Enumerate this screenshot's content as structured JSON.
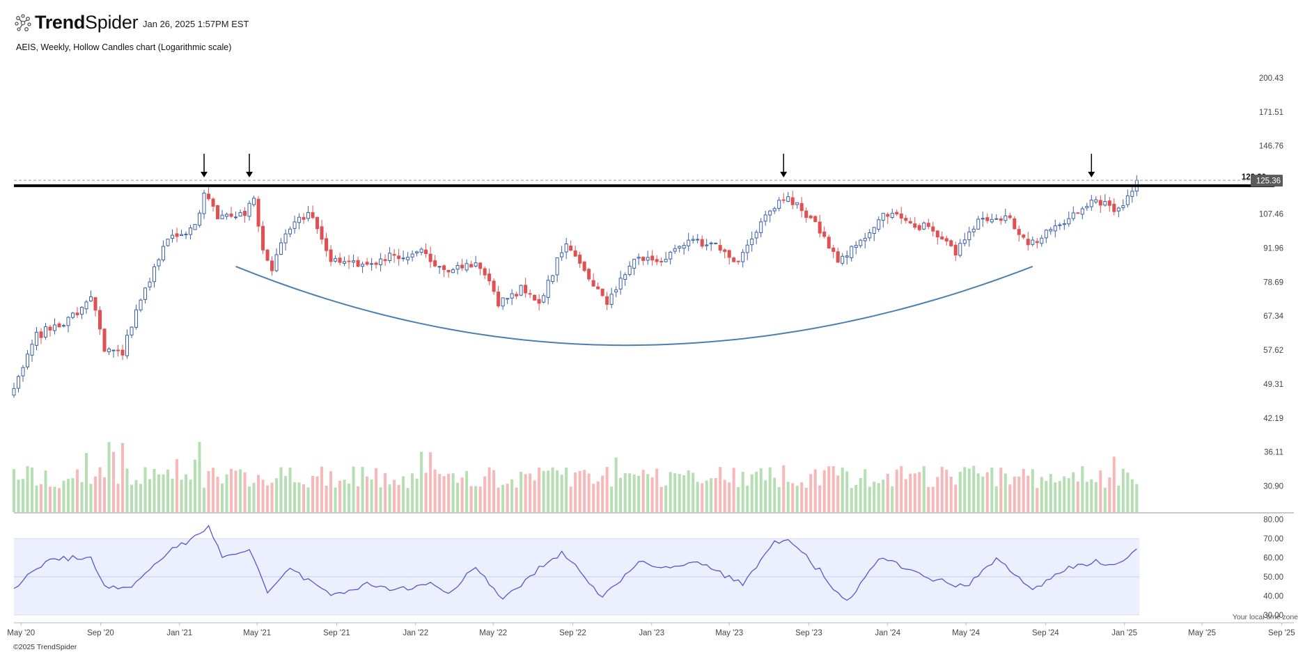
{
  "header": {
    "brand_bold": "Trend",
    "brand_light": "Spider",
    "timestamp": "Jan 26, 2025 1:57PM EST",
    "chart_title": "AEIS, Weekly, Hollow Candles chart (Logarithmic scale)"
  },
  "footer": {
    "copyright": "©2025 TrendSpider",
    "timezone_note": "Your local time zone"
  },
  "colors": {
    "up": "#3a5fa8",
    "down": "#e15050",
    "volume_up": "#b5dfb2",
    "volume_down": "#f6b8b8",
    "rsi_line": "#4a4ad0",
    "rsi_band": "#eceffd",
    "cup_curve": "#4b7fb0",
    "resistance": "#000000",
    "price_tag_bg": "#5a5a5a"
  },
  "chart_data": {
    "type": "candlestick",
    "symbol": "AEIS",
    "interval": "Weekly",
    "scale": "log",
    "price_axis_ticks": [
      200.43,
      171.51,
      146.76,
      125.36,
      107.46,
      91.96,
      78.69,
      67.34,
      57.62,
      49.31,
      42.19,
      36.11,
      30.9
    ],
    "rsi_axis_ticks": [
      80.0,
      70.0,
      60.0,
      50.0,
      40.0,
      30.0
    ],
    "x_ticks": [
      "May '20",
      "Sep '20",
      "Jan '21",
      "May '21",
      "Sep '21",
      "Jan '22",
      "May '22",
      "Sep '22",
      "Jan '23",
      "May '23",
      "Sep '23",
      "Jan '24",
      "May '24",
      "Sep '24",
      "Jan '25",
      "May '25",
      "Sep '25"
    ],
    "x_range": [
      "2020-04-20",
      "2025-09-20"
    ],
    "price_range": [
      27.6,
      217
    ],
    "resistance_level": 122.3,
    "dashed_level": 125.36,
    "last_price": 125.36,
    "rsi_band": [
      30,
      70
    ],
    "rsi_range": [
      27,
      82
    ],
    "arrow_dates": [
      "2021-02-08",
      "2021-04-19",
      "2023-07-24",
      "2024-11-11"
    ],
    "cup_curve": {
      "start": [
        "2021-03-29",
        84.5
      ],
      "bottom": [
        "2022-11-21",
        58.9
      ],
      "end": [
        "2024-08-12",
        84.5
      ]
    },
    "price_anchors": [
      [
        "2020-04-20",
        48
      ],
      [
        "2020-05-25",
        62
      ],
      [
        "2020-07-06",
        65
      ],
      [
        "2020-08-17",
        73
      ],
      [
        "2020-09-07",
        58
      ],
      [
        "2020-10-05",
        57
      ],
      [
        "2020-11-09",
        76
      ],
      [
        "2020-12-14",
        96
      ],
      [
        "2021-01-25",
        100
      ],
      [
        "2021-02-08",
        118
      ],
      [
        "2021-03-01",
        106
      ],
      [
        "2021-04-12",
        106
      ],
      [
        "2021-04-26",
        115
      ],
      [
        "2021-05-10",
        91
      ],
      [
        "2021-05-24",
        83
      ],
      [
        "2021-06-14",
        100
      ],
      [
        "2021-07-19",
        108
      ],
      [
        "2021-08-23",
        87
      ],
      [
        "2021-10-04",
        85
      ],
      [
        "2021-11-22",
        88
      ],
      [
        "2022-01-10",
        91
      ],
      [
        "2022-02-14",
        82
      ],
      [
        "2022-04-04",
        87
      ],
      [
        "2022-05-09",
        72
      ],
      [
        "2022-06-13",
        76
      ],
      [
        "2022-07-11",
        71
      ],
      [
        "2022-08-22",
        94
      ],
      [
        "2022-09-26",
        80
      ],
      [
        "2022-10-24",
        71
      ],
      [
        "2022-12-05",
        88
      ],
      [
        "2023-01-16",
        87
      ],
      [
        "2023-02-27",
        96
      ],
      [
        "2023-04-10",
        92
      ],
      [
        "2023-05-15",
        86
      ],
      [
        "2023-06-19",
        103
      ],
      [
        "2023-07-24",
        117
      ],
      [
        "2023-08-28",
        108
      ],
      [
        "2023-10-16",
        86
      ],
      [
        "2023-11-27",
        96
      ],
      [
        "2023-12-25",
        108
      ],
      [
        "2024-02-05",
        103
      ],
      [
        "2024-03-11",
        99
      ],
      [
        "2024-04-15",
        91
      ],
      [
        "2024-05-20",
        104
      ],
      [
        "2024-07-01",
        107
      ],
      [
        "2024-08-05",
        93
      ],
      [
        "2024-09-16",
        102
      ],
      [
        "2024-11-11",
        113
      ],
      [
        "2024-12-23",
        110
      ],
      [
        "2025-01-20",
        123
      ]
    ],
    "rsi_anchors": [
      [
        "2020-04-20",
        44
      ],
      [
        "2020-06-15",
        60
      ],
      [
        "2020-08-17",
        60
      ],
      [
        "2020-09-07",
        44
      ],
      [
        "2020-10-19",
        45
      ],
      [
        "2020-12-14",
        63
      ],
      [
        "2021-01-25",
        71
      ],
      [
        "2021-02-15",
        76
      ],
      [
        "2021-03-08",
        60
      ],
      [
        "2021-04-19",
        64
      ],
      [
        "2021-05-17",
        42
      ],
      [
        "2021-06-21",
        55
      ],
      [
        "2021-08-23",
        40
      ],
      [
        "2021-10-18",
        46
      ],
      [
        "2021-12-06",
        43
      ],
      [
        "2022-01-24",
        47
      ],
      [
        "2022-02-21",
        41
      ],
      [
        "2022-04-04",
        55
      ],
      [
        "2022-05-16",
        38
      ],
      [
        "2022-06-27",
        50
      ],
      [
        "2022-08-15",
        63
      ],
      [
        "2022-10-17",
        39
      ],
      [
        "2022-12-12",
        58
      ],
      [
        "2023-01-23",
        54
      ],
      [
        "2023-03-13",
        58
      ],
      [
        "2023-05-22",
        46
      ],
      [
        "2023-07-10",
        68
      ],
      [
        "2023-07-31",
        70
      ],
      [
        "2023-09-04",
        58
      ],
      [
        "2023-10-30",
        37
      ],
      [
        "2023-12-18",
        60
      ],
      [
        "2024-02-26",
        51
      ],
      [
        "2024-04-29",
        44
      ],
      [
        "2024-06-17",
        60
      ],
      [
        "2024-08-12",
        43
      ],
      [
        "2024-09-23",
        53
      ],
      [
        "2024-11-18",
        58
      ],
      [
        "2024-12-23",
        57
      ],
      [
        "2025-01-20",
        64
      ]
    ],
    "resistance_label": "122.30",
    "last_price_label": "125.36"
  }
}
